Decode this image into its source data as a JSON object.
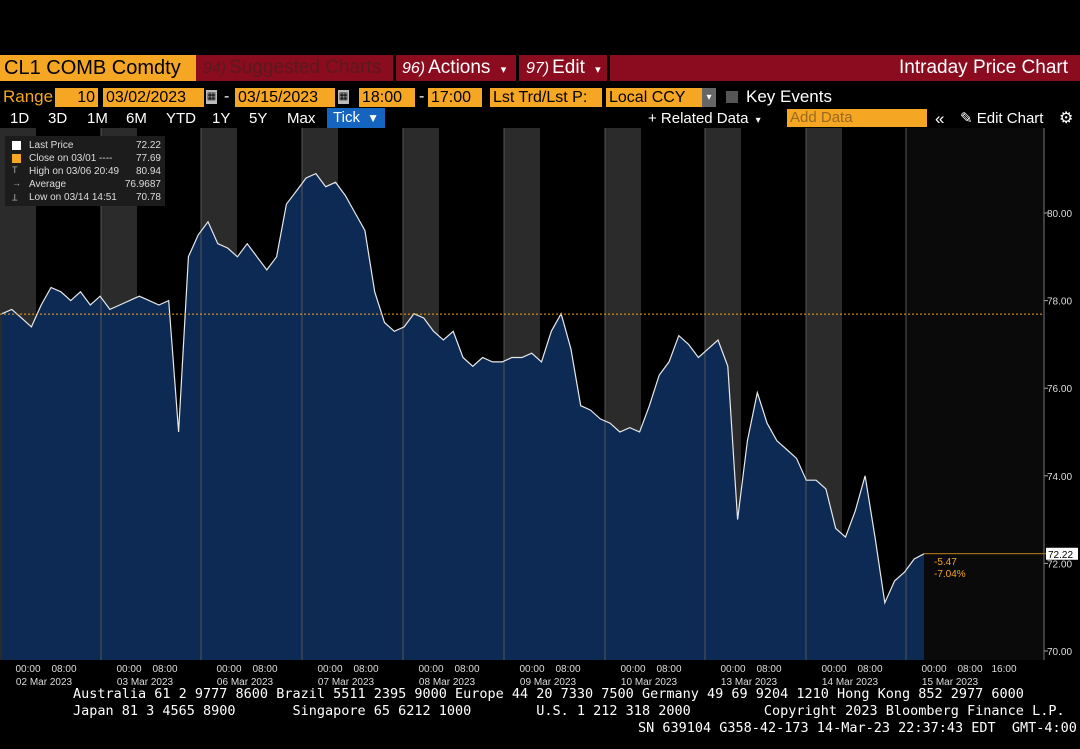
{
  "header": {
    "ticker": "CL1 COMB Comdty",
    "suggested_num": "94)",
    "suggested_label": "Suggested Charts",
    "actions_num": "96)",
    "actions_label": "Actions",
    "edit_num": "97)",
    "edit_label": "Edit",
    "dropdown_glyph": "▾",
    "chart_title": "Intraday Price Chart"
  },
  "range_bar": {
    "range_label": "Range",
    "bars_value": "10",
    "start_date": "03/02/2023",
    "end_date": "03/15/2023",
    "start_time": "18:00",
    "end_time": "17:00",
    "dash": "-",
    "price_field": "Lst Trd/Lst P:",
    "currency": "Local CCY",
    "key_events_label": "Key Events",
    "key_events_checked": false
  },
  "period_bar": {
    "buttons": [
      "1D",
      "3D",
      "1M",
      "6M",
      "YTD",
      "1Y",
      "5Y",
      "Max"
    ],
    "tick_label": "Tick",
    "tick_arrow": "▼",
    "related_data_label": "+ Related Data",
    "add_data_placeholder": "Add Data",
    "collapse_glyph": "«",
    "edit_chart_label": "Edit Chart",
    "gear_icon": "gear-icon"
  },
  "legend": {
    "rows": [
      {
        "key": "Last Price",
        "value": "72.22",
        "marker": "square-white"
      },
      {
        "key": "Close on 03/01 ----",
        "value": "77.69",
        "marker": "square-orange"
      },
      {
        "key": "High on 03/06 20:49",
        "value": "80.94",
        "marker": "high-tick"
      },
      {
        "key": "Average",
        "value": "76.9687",
        "marker": "avg-arrow"
      },
      {
        "key": "Low on 03/14 14:51",
        "value": "70.78",
        "marker": "low-tick"
      }
    ]
  },
  "annotations": {
    "last_price_badge": "72.22",
    "change_abs": "-5.47",
    "change_pct": "-7.04%"
  },
  "footer": {
    "line1": "Australia 61 2 9777 8600 Brazil 5511 2395 9000 Europe 44 20 7330 7500 Germany 49 69 9204 1210 Hong Kong 852 2977 6000",
    "line2": "Japan 81 3 4565 8900       Singapore 65 6212 1000        U.S. 1 212 318 2000         Copyright 2023 Bloomberg Finance L.P.",
    "line3": "SN 639104 G358-42-173 14-Mar-23 22:37:43 EDT  GMT-4:00"
  },
  "colors": {
    "title_bar": "#8b0c1f",
    "accent_orange": "#f5a623",
    "area_fill": "#0d2a55",
    "night_band": "#2b2b2b",
    "close_line": "#f5a623",
    "tick_button": "#1565c0"
  },
  "chart_data": {
    "type": "area",
    "title": "",
    "xlabel": "",
    "ylabel": "",
    "ylim": [
      69.8,
      82.0
    ],
    "y_ticks": [
      "70.00",
      "72.00",
      "74.00",
      "76.00",
      "78.00",
      "80.00"
    ],
    "y_tick_values": [
      70,
      72,
      74,
      76,
      78,
      80
    ],
    "x_ticks": [
      {
        "time1": "00:00",
        "time2": "08:00",
        "date": "02 Mar 2023"
      },
      {
        "time1": "00:00",
        "time2": "08:00",
        "date": "03 Mar 2023"
      },
      {
        "time1": "00:00",
        "time2": "08:00",
        "date": "06 Mar 2023"
      },
      {
        "time1": "00:00",
        "time2": "08:00",
        "date": "07 Mar 2023"
      },
      {
        "time1": "00:00",
        "time2": "08:00",
        "date": "08 Mar 2023"
      },
      {
        "time1": "00:00",
        "time2": "08:00",
        "date": "09 Mar 2023"
      },
      {
        "time1": "00:00",
        "time2": "08:00",
        "date": "10 Mar 2023"
      },
      {
        "time1": "00:00",
        "time2": "08:00",
        "date": "13 Mar 2023"
      },
      {
        "time1": "00:00",
        "time2": "08:00",
        "date": "14 Mar 2023"
      },
      {
        "time1": "00:00",
        "time2": "08:00",
        "time3": "16:00",
        "date": "15 Mar 2023"
      }
    ],
    "close_reference": 77.69,
    "last_price": 72.22,
    "grid": false,
    "series": [
      {
        "values": [
          77.7,
          77.8,
          77.6,
          77.4,
          77.9,
          78.3,
          78.2,
          78.0,
          78.2,
          77.9,
          78.1,
          77.8,
          77.9,
          78.0,
          78.1,
          78.0,
          77.9,
          78.0,
          75.0,
          79.0,
          79.5,
          79.8,
          79.3,
          79.2,
          79.0,
          79.3,
          79.0,
          78.7,
          79.0,
          80.2,
          80.5,
          80.8,
          80.9,
          80.6,
          80.7,
          80.4,
          80.0,
          79.6,
          78.2,
          77.5,
          77.3,
          77.4,
          77.7,
          77.6,
          77.3,
          77.1,
          77.3,
          76.7,
          76.5,
          76.7,
          76.6,
          76.6,
          76.7,
          76.7,
          76.8,
          76.6,
          77.3,
          77.7,
          76.9,
          75.6,
          75.5,
          75.3,
          75.2,
          75.0,
          75.1,
          75.0,
          75.6,
          76.3,
          76.6,
          77.2,
          77.0,
          76.7,
          76.9,
          77.1,
          76.5,
          73.0,
          74.8,
          75.9,
          75.2,
          74.8,
          74.6,
          74.4,
          73.9,
          73.9,
          73.7,
          72.8,
          72.6,
          73.2,
          74.0,
          72.6,
          71.1,
          71.6,
          71.8,
          72.1,
          72.22
        ]
      }
    ]
  }
}
